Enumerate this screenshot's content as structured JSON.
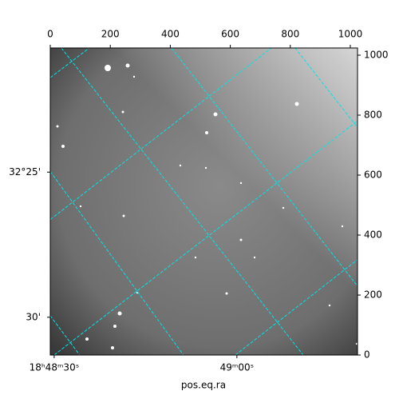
{
  "chart_data": {
    "type": "image",
    "xlabel": "pos.eq.ra",
    "xlim": [
      0,
      1024
    ],
    "ylim": [
      0,
      1024
    ],
    "xticks": [
      0,
      200,
      400,
      600,
      800,
      1000
    ],
    "yticks": [
      0,
      200,
      400,
      600,
      800,
      1000
    ],
    "ra_ticks": [
      {
        "value": 13,
        "label": "18ʰ48ᵐ30ˢ"
      },
      {
        "value": 622,
        "label": "49ᵐ00ˢ"
      }
    ],
    "dec_ticks": [
      {
        "value": 610,
        "label": "32°25'"
      },
      {
        "value": 126,
        "label": "30'"
      }
    ],
    "grid_color": "#00e5e5",
    "dec_lines": [
      [
        [
          0,
          925
        ],
        [
          130,
          1024
        ]
      ],
      [
        [
          0,
          452
        ],
        [
          737,
          1024
        ]
      ],
      [
        [
          13,
          0
        ],
        [
          1024,
          781
        ]
      ],
      [
        [
          617,
          0
        ],
        [
          1024,
          318
        ]
      ]
    ],
    "ra_lines": [
      [
        [
          37,
          1024
        ],
        [
          843,
          0
        ]
      ],
      [
        [
          0,
          612
        ],
        [
          444,
          0
        ]
      ],
      [
        [
          0,
          131
        ],
        [
          98,
          0
        ]
      ],
      [
        [
          404,
          1024
        ],
        [
          1024,
          230
        ]
      ],
      [
        [
          816,
          1024
        ],
        [
          1024,
          759
        ]
      ]
    ]
  }
}
